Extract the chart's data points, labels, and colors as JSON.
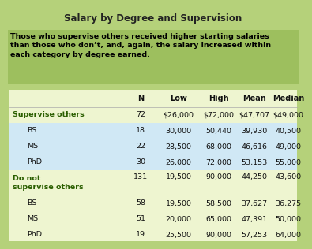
{
  "title": "Salary by Degree and Supervision",
  "subtitle": "Those who supervise others received higher starting salaries\nthan those who don’t, and, again, the salary increased within\neach category by degree earned.",
  "rows": [
    {
      "label": "Supervise others",
      "indent": 0,
      "bold": true,
      "n": "72",
      "low": "$26,000",
      "high": "$72,000",
      "mean": "$47,707",
      "median": "$49,000",
      "highlight": false,
      "double_height": false
    },
    {
      "label": "BS",
      "indent": 1,
      "bold": false,
      "n": "18",
      "low": "30,000",
      "high": "50,440",
      "mean": "39,930",
      "median": "40,500",
      "highlight": true,
      "double_height": false
    },
    {
      "label": "MS",
      "indent": 1,
      "bold": false,
      "n": "22",
      "low": "28,500",
      "high": "68,000",
      "mean": "46,616",
      "median": "49,000",
      "highlight": true,
      "double_height": false
    },
    {
      "label": "PhD",
      "indent": 1,
      "bold": false,
      "n": "30",
      "low": "26,000",
      "high": "72,000",
      "mean": "53,153",
      "median": "55,000",
      "highlight": true,
      "double_height": false
    },
    {
      "label": "Do not\nsupervise others",
      "indent": 0,
      "bold": true,
      "n": "131",
      "low": "19,500",
      "high": "90,000",
      "mean": "44,250",
      "median": "43,600",
      "highlight": false,
      "double_height": true
    },
    {
      "label": "BS",
      "indent": 1,
      "bold": false,
      "n": "58",
      "low": "19,500",
      "high": "58,500",
      "mean": "37,627",
      "median": "36,275",
      "highlight": false,
      "double_height": false
    },
    {
      "label": "MS",
      "indent": 1,
      "bold": false,
      "n": "51",
      "low": "20,000",
      "high": "65,000",
      "mean": "47,391",
      "median": "50,000",
      "highlight": false,
      "double_height": false
    },
    {
      "label": "PhD",
      "indent": 1,
      "bold": false,
      "n": "19",
      "low": "25,500",
      "high": "90,000",
      "mean": "57,253",
      "median": "64,000",
      "highlight": false,
      "double_height": false
    }
  ],
  "bg_outer": "#b5d17a",
  "bg_subtitle": "#9dbf5e",
  "bg_table": "#eef5d0",
  "bg_highlight": "#d0e8f5",
  "title_color": "#222222",
  "bold_row_color": "#2a5e00",
  "normal_row_color": "#111111",
  "header_color": "#111111"
}
